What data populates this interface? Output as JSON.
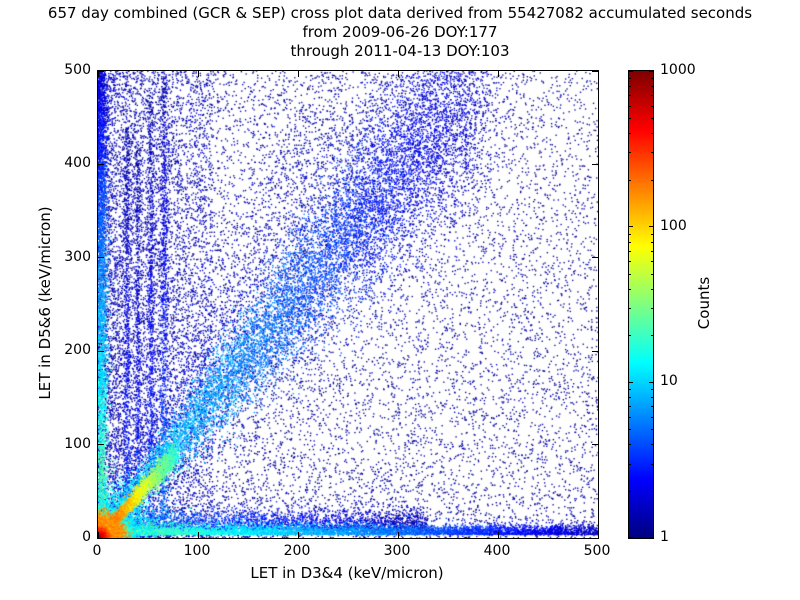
{
  "chart_data": {
    "type": "heatmap",
    "title": "657 day combined (GCR & SEP) cross plot data derived from 55427082 accumulated seconds",
    "subtitle_from": "from 2009-06-26 DOY:177",
    "subtitle_through": "through 2011-04-13 DOY:103",
    "meta": {
      "duration_days": 657,
      "accumulated_seconds": 55427082,
      "start_date": "2009-06-26",
      "start_doy": 177,
      "end_date": "2011-04-13",
      "end_doy": 103
    },
    "xlabel": "LET in D3&4 (keV/micron)",
    "ylabel": "LET in D5&6 (keV/micron)",
    "xlim": [
      0,
      500
    ],
    "ylim": [
      0,
      500
    ],
    "xticks": [
      0,
      100,
      200,
      300,
      400,
      500
    ],
    "yticks": [
      0,
      100,
      200,
      300,
      400,
      500
    ],
    "grid": false,
    "colorbar": {
      "label": "Counts",
      "scale": "log",
      "min": 1,
      "max": 1000,
      "ticks": [
        1,
        10,
        100,
        1000
      ],
      "colormap": "jet",
      "colormap_hex_bottom_to_top": [
        "#00007f",
        "#0000ff",
        "#00ffff",
        "#7fff7f",
        "#ffff00",
        "#ff0000",
        "#7f0000"
      ]
    },
    "description": "2D log-scaled density cross plot of LET coincidences. Hot (red, ~1000 counts) core at the origin with yellow/green/cyan halo, a bright short diagonal ridge to ~(75,90), a broad blue diagonal band of slope ~1.3 fanning out to ~(380,495), a dense column along the y-axis, faint vertical streaks near x=29,40,53,66, a horizontal band along y~5 reaching x=500, and sparse dark-blue single counts everywhere (denser toward low LET).",
    "features": [
      {
        "kind": "uniform",
        "n": 4200,
        "xmax": 500,
        "ymax": 500,
        "xpow": 1.0,
        "ypow": 1.0,
        "level": 0.04
      },
      {
        "kind": "uniform",
        "n": 9500,
        "xmax": 500,
        "ymax": 500,
        "xpow": 1.8,
        "ypow": 1.3,
        "level": 0.1
      },
      {
        "kind": "uniform",
        "n": 4200,
        "xmax": 115,
        "ymax": 500,
        "xpow": 1.35,
        "ypow": 1.0,
        "level": 0.22
      },
      {
        "kind": "diagonal",
        "n": 2600,
        "slope": 1.62,
        "length": 300,
        "tpow": 0.9,
        "spread0": 10,
        "spread1": 95,
        "level0": 0.45,
        "level1": 0.08
      },
      {
        "kind": "vband",
        "n": 650,
        "x0": 29,
        "xsigma": 1.6,
        "ymax": 440,
        "ypow": 1.0,
        "level0": 0.55,
        "level1": 0.1
      },
      {
        "kind": "vband",
        "n": 550,
        "x0": 40,
        "xsigma": 1.6,
        "ymax": 420,
        "ypow": 1.0,
        "level0": 0.5,
        "level1": 0.1
      },
      {
        "kind": "vband",
        "n": 700,
        "x0": 53,
        "xsigma": 1.8,
        "ymax": 470,
        "ypow": 1.0,
        "level0": 0.55,
        "level1": 0.1
      },
      {
        "kind": "vband",
        "n": 850,
        "x0": 66,
        "xsigma": 2.0,
        "ymax": 500,
        "ypow": 1.0,
        "level0": 0.7,
        "level1": 0.12
      },
      {
        "kind": "vband",
        "n": 3600,
        "x0": 3,
        "xsigma": 3.5,
        "ymax": 500,
        "ypow": 0.95,
        "level0": 1.5,
        "level1": 0.25
      },
      {
        "kind": "hband",
        "n": 2600,
        "y0": 8,
        "ysigma": 11,
        "xmax": 330,
        "xpow": 1.0,
        "level0": 0.75,
        "level1": 0.15
      },
      {
        "kind": "hband",
        "n": 5600,
        "y0": 3.5,
        "ysigma": 5,
        "xmax": 500,
        "xpow": 1.15,
        "level0": 1.45,
        "level1": 0.2
      },
      {
        "kind": "diagonal",
        "n": 9500,
        "slope": 1.3,
        "length": 380,
        "tpow": 0.78,
        "spread0": 4,
        "spread1": 58,
        "level0": 1.15,
        "level1": 0.2
      },
      {
        "kind": "core",
        "n": 2200,
        "sigma": 24,
        "level0": 2.1,
        "level1": 1.1
      },
      {
        "kind": "diagonal",
        "n": 2400,
        "slope": 1.15,
        "length": 78,
        "tpow": 1.0,
        "spread0": 2.2,
        "spread1": 7,
        "level0": 2.55,
        "level1": 1.25
      },
      {
        "kind": "core",
        "n": 3200,
        "sigma": 10,
        "level0": 3.0,
        "level1": 2.2
      }
    ]
  }
}
